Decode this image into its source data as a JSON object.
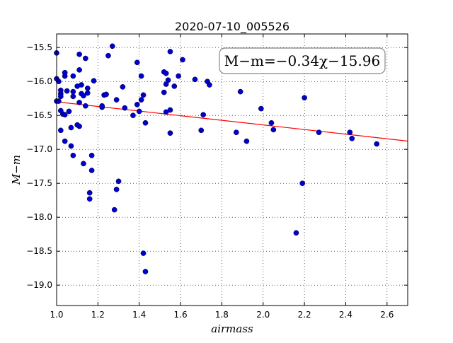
{
  "chart_data": {
    "type": "scatter",
    "title": "2020-07-10_005526",
    "xlabel": "airmass",
    "ylabel": "M−m",
    "xlim": [
      1.0,
      2.7
    ],
    "ylim": [
      -19.3,
      -15.3
    ],
    "xticks": [
      1.0,
      1.2,
      1.4,
      1.6,
      1.8,
      2.0,
      2.2,
      2.4,
      2.6
    ],
    "xtick_labels": [
      "1.0",
      "1.2",
      "1.4",
      "1.6",
      "1.8",
      "2.0",
      "2.2",
      "2.4",
      "2.6"
    ],
    "yticks": [
      -15.5,
      -16.0,
      -16.5,
      -17.0,
      -17.5,
      -18.0,
      -18.5,
      -19.0
    ],
    "ytick_labels": [
      "−15.5",
      "−16.0",
      "−16.5",
      "−17.0",
      "−17.5",
      "−18.0",
      "−18.5",
      "−19.0"
    ],
    "grid": true,
    "annotation": "M−m=−0.34χ−15.96",
    "fit": {
      "slope": -0.34,
      "intercept": -15.96,
      "color": "#ff0000"
    },
    "marker_color": "#0000cc",
    "points": [
      [
        1.0,
        -15.58
      ],
      [
        1.0,
        -15.96
      ],
      [
        1.01,
        -16.0
      ],
      [
        1.0,
        -16.29
      ],
      [
        1.01,
        -16.29
      ],
      [
        1.02,
        -16.18
      ],
      [
        1.02,
        -16.22
      ],
      [
        1.02,
        -16.13
      ],
      [
        1.02,
        -16.43
      ],
      [
        1.03,
        -16.48
      ],
      [
        1.04,
        -16.49
      ],
      [
        1.02,
        -16.72
      ],
      [
        1.04,
        -16.88
      ],
      [
        1.04,
        -15.87
      ],
      [
        1.04,
        -15.92
      ],
      [
        1.05,
        -16.14
      ],
      [
        1.06,
        -16.44
      ],
      [
        1.07,
        -16.68
      ],
      [
        1.07,
        -16.95
      ],
      [
        1.08,
        -17.09
      ],
      [
        1.08,
        -16.15
      ],
      [
        1.08,
        -16.22
      ],
      [
        1.08,
        -15.92
      ],
      [
        1.1,
        -16.07
      ],
      [
        1.1,
        -16.64
      ],
      [
        1.11,
        -16.66
      ],
      [
        1.11,
        -15.83
      ],
      [
        1.11,
        -15.6
      ],
      [
        1.11,
        -16.31
      ],
      [
        1.12,
        -16.05
      ],
      [
        1.12,
        -16.18
      ],
      [
        1.13,
        -16.21
      ],
      [
        1.13,
        -17.21
      ],
      [
        1.14,
        -15.66
      ],
      [
        1.14,
        -16.36
      ],
      [
        1.15,
        -16.1
      ],
      [
        1.15,
        -16.17
      ],
      [
        1.16,
        -17.73
      ],
      [
        1.16,
        -17.64
      ],
      [
        1.17,
        -17.31
      ],
      [
        1.17,
        -17.09
      ],
      [
        1.18,
        -15.99
      ],
      [
        1.22,
        -16.38
      ],
      [
        1.22,
        -16.36
      ],
      [
        1.23,
        -16.2
      ],
      [
        1.24,
        -16.19
      ],
      [
        1.25,
        -15.62
      ],
      [
        1.27,
        -15.48
      ],
      [
        1.28,
        -17.89
      ],
      [
        1.29,
        -16.27
      ],
      [
        1.29,
        -17.59
      ],
      [
        1.3,
        -17.47
      ],
      [
        1.32,
        -16.08
      ],
      [
        1.33,
        -16.39
      ],
      [
        1.37,
        -16.5
      ],
      [
        1.39,
        -16.34
      ],
      [
        1.39,
        -15.72
      ],
      [
        1.4,
        -16.44
      ],
      [
        1.41,
        -15.92
      ],
      [
        1.41,
        -16.27
      ],
      [
        1.42,
        -16.2
      ],
      [
        1.42,
        -18.53
      ],
      [
        1.43,
        -18.8
      ],
      [
        1.43,
        -16.61
      ],
      [
        1.52,
        -15.86
      ],
      [
        1.52,
        -16.16
      ],
      [
        1.53,
        -16.45
      ],
      [
        1.53,
        -16.04
      ],
      [
        1.53,
        -15.88
      ],
      [
        1.54,
        -15.98
      ],
      [
        1.55,
        -16.42
      ],
      [
        1.55,
        -16.76
      ],
      [
        1.55,
        -15.56
      ],
      [
        1.57,
        -16.07
      ],
      [
        1.59,
        -15.92
      ],
      [
        1.61,
        -15.68
      ],
      [
        1.67,
        -15.97
      ],
      [
        1.7,
        -16.72
      ],
      [
        1.71,
        -16.49
      ],
      [
        1.73,
        -16.0
      ],
      [
        1.74,
        -16.05
      ],
      [
        1.87,
        -16.75
      ],
      [
        1.89,
        -16.15
      ],
      [
        1.92,
        -16.88
      ],
      [
        1.99,
        -16.4
      ],
      [
        2.04,
        -16.61
      ],
      [
        2.05,
        -16.71
      ],
      [
        2.16,
        -18.23
      ],
      [
        2.19,
        -17.5
      ],
      [
        2.2,
        -16.24
      ],
      [
        2.27,
        -16.75
      ],
      [
        2.42,
        -16.75
      ],
      [
        2.43,
        -16.84
      ],
      [
        2.55,
        -16.92
      ]
    ]
  }
}
